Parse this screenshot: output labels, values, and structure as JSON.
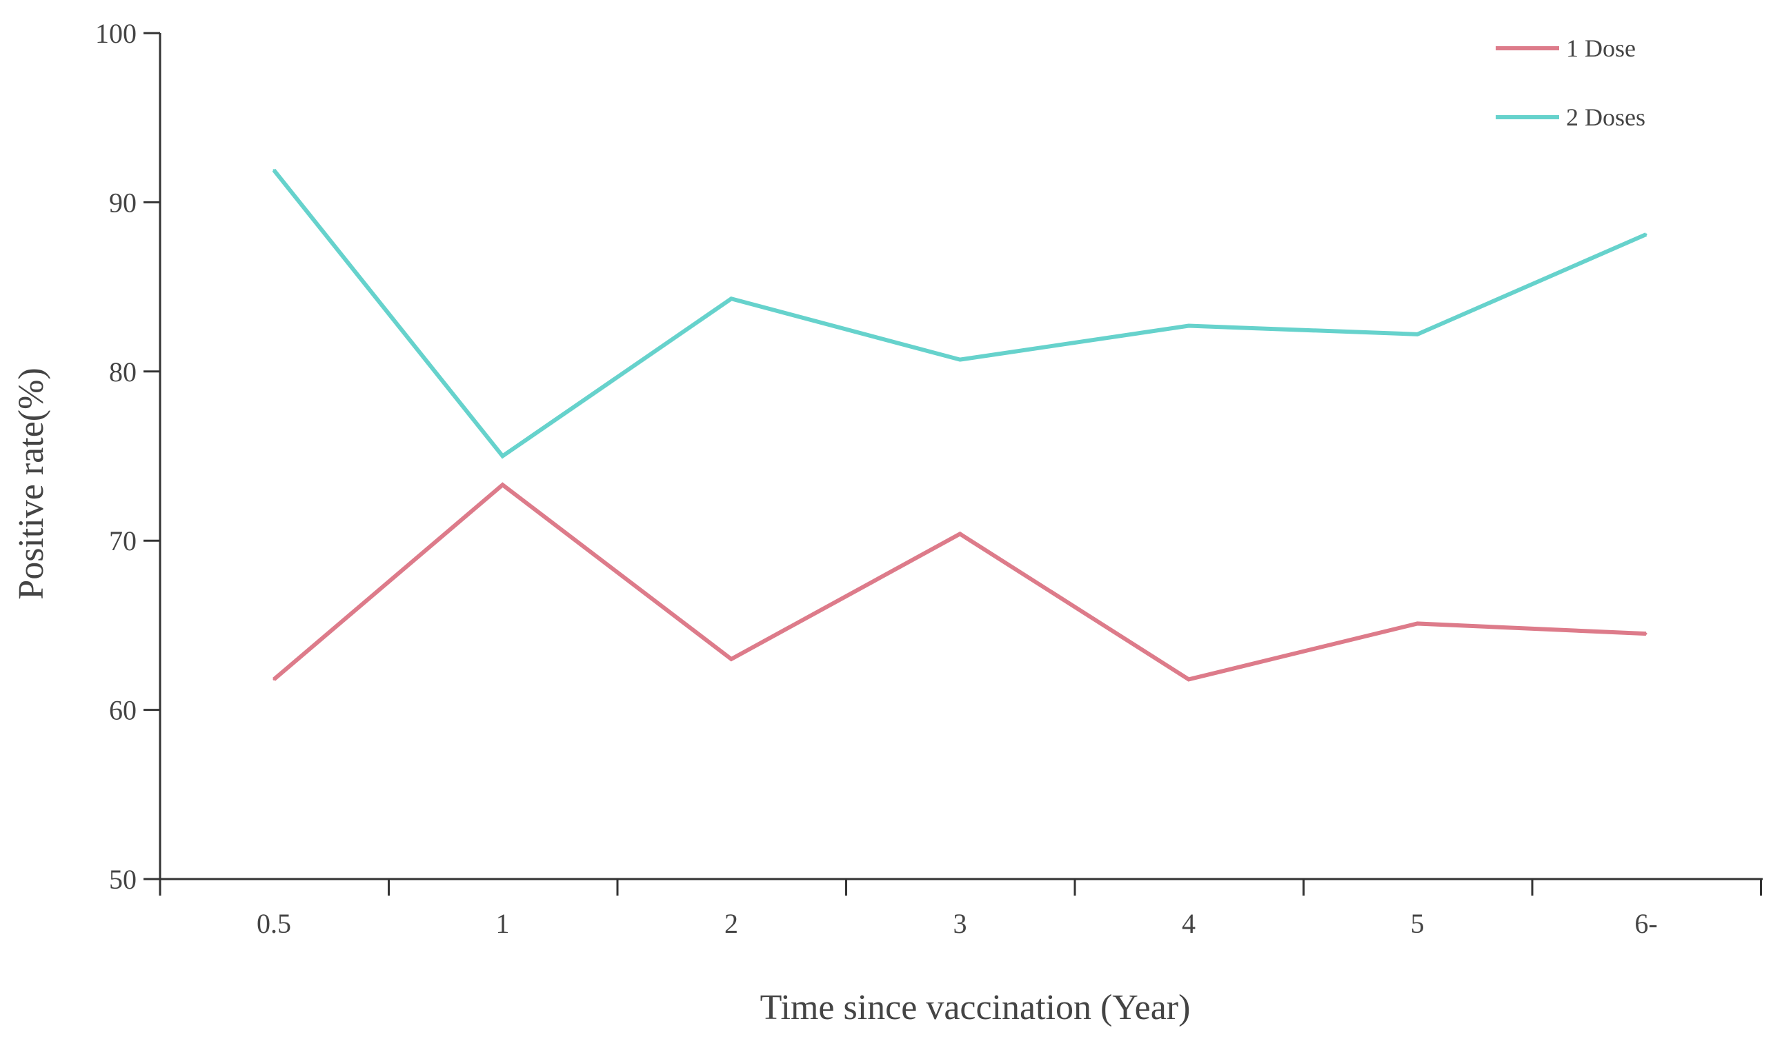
{
  "chart_data": {
    "type": "line",
    "categories": [
      "0.5",
      "1",
      "2",
      "3",
      "4",
      "5",
      "6-"
    ],
    "series": [
      {
        "name": "1 Dose",
        "color": "#dd7b8a",
        "values": [
          61.8,
          73.3,
          63.0,
          70.4,
          61.8,
          65.1,
          64.5
        ]
      },
      {
        "name": "2 Doses",
        "color": "#66d2cc",
        "values": [
          91.9,
          75.0,
          84.3,
          80.7,
          82.7,
          82.2,
          88.1
        ]
      }
    ],
    "xlabel": "Time since vaccination (Year)",
    "ylabel": "Positive rate(%)",
    "ylim": [
      50,
      100
    ],
    "yticks": [
      50,
      60,
      70,
      80,
      90,
      100
    ],
    "grid": false,
    "legend_position": "top-right"
  }
}
